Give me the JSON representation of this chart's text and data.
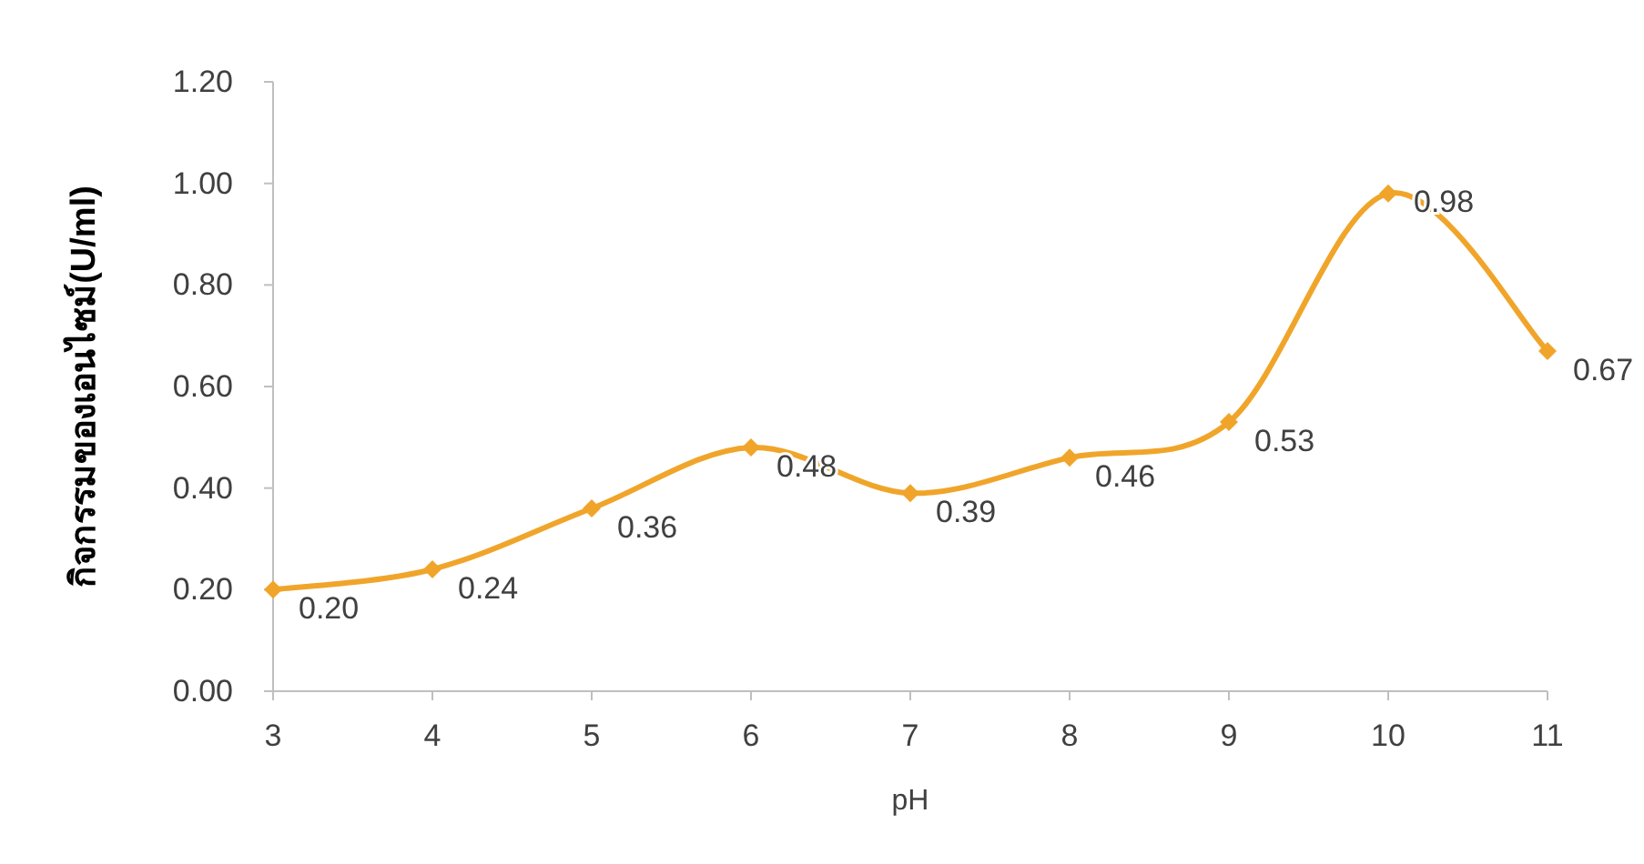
{
  "chart_data": {
    "type": "line",
    "xlabel": "pH",
    "ylabel": "กิจกรรมของเอนไซม์(U/ml)",
    "categories": [
      "3",
      "4",
      "5",
      "6",
      "7",
      "8",
      "9",
      "10",
      "11"
    ],
    "series": [
      {
        "color": "#f0a52a",
        "values": [
          0.2,
          0.24,
          0.36,
          0.48,
          0.39,
          0.46,
          0.53,
          0.98,
          0.67
        ],
        "value_labels": [
          "0.20",
          "0.24",
          "0.36",
          "0.48",
          "0.39",
          "0.46",
          "0.53",
          "0.98",
          "0.67"
        ]
      }
    ],
    "ylim": [
      0,
      1.2
    ],
    "yticks": [
      {
        "value": 0,
        "label": "0.00"
      },
      {
        "value": 0.2,
        "label": "0.20"
      },
      {
        "value": 0.4,
        "label": "0.40"
      },
      {
        "value": 0.6,
        "label": "0.60"
      },
      {
        "value": 0.8,
        "label": "0.80"
      },
      {
        "value": 1.0,
        "label": "1.00"
      },
      {
        "value": 1.2,
        "label": "1.20"
      }
    ],
    "marker": "diamond",
    "line_style": "solid",
    "grid": false
  }
}
